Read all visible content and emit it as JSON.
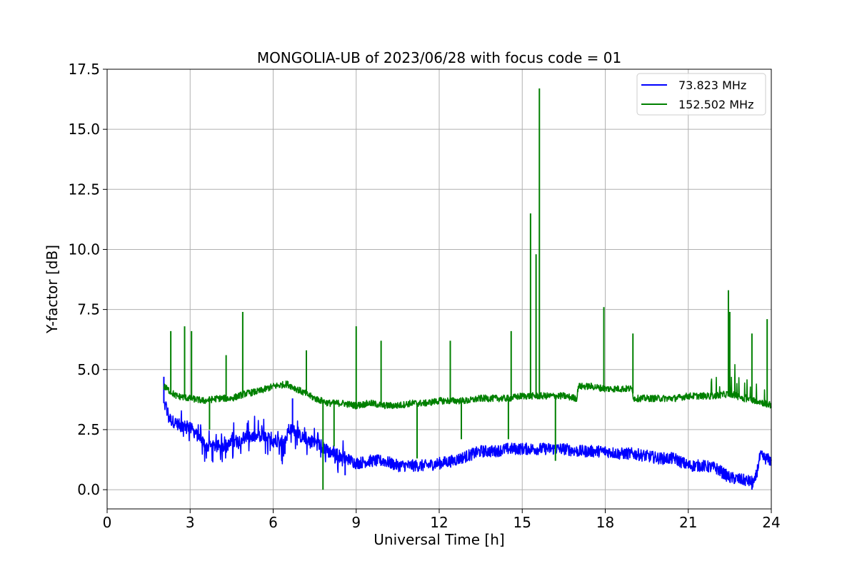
{
  "chart_data": {
    "type": "line",
    "title": "MONGOLIA-UB of 2023/06/28 with focus code = 01",
    "xlabel": "Universal Time [h]",
    "ylabel": "Y-factor [dB]",
    "xlim": [
      0,
      24
    ],
    "ylim": [
      -0.8,
      17.5
    ],
    "xticks": [
      0,
      3,
      6,
      9,
      12,
      15,
      18,
      21,
      24
    ],
    "xtick_labels": [
      "0",
      "3",
      "6",
      "9",
      "12",
      "15",
      "18",
      "21",
      "24"
    ],
    "yticks": [
      0,
      2.5,
      5,
      7.5,
      10,
      12.5,
      15,
      17.5
    ],
    "ytick_labels": [
      "0.0",
      "2.5",
      "5.0",
      "7.5",
      "10.0",
      "12.5",
      "15.0",
      "17.5"
    ],
    "grid": true,
    "legend_position": "top-right",
    "series": [
      {
        "name": "73.823 MHz",
        "color": "#0000ff",
        "x": [
          2.05,
          2.3,
          2.6,
          3.0,
          3.3,
          3.6,
          4.0,
          4.5,
          5.0,
          5.5,
          6.0,
          6.4,
          6.6,
          7.0,
          7.5,
          8.0,
          8.5,
          9.0,
          9.5,
          10.0,
          10.5,
          11.0,
          11.5,
          12.0,
          12.5,
          13.0,
          13.5,
          14.0,
          14.5,
          15.0,
          15.5,
          16.0,
          16.5,
          17.0,
          17.5,
          18.0,
          18.5,
          19.0,
          19.5,
          20.0,
          20.5,
          21.0,
          21.5,
          22.0,
          22.5,
          23.0,
          23.4,
          23.6,
          24.0
        ],
        "y": [
          3.6,
          2.9,
          2.7,
          2.6,
          2.2,
          1.8,
          1.8,
          1.9,
          2.2,
          2.2,
          2.1,
          1.9,
          2.6,
          2.2,
          2.0,
          1.6,
          1.4,
          1.1,
          1.2,
          1.2,
          1.0,
          1.0,
          1.0,
          1.1,
          1.2,
          1.4,
          1.6,
          1.6,
          1.7,
          1.7,
          1.7,
          1.7,
          1.7,
          1.6,
          1.6,
          1.6,
          1.5,
          1.5,
          1.4,
          1.3,
          1.3,
          1.0,
          1.0,
          0.9,
          0.5,
          0.4,
          0.3,
          1.4,
          1.2
        ]
      },
      {
        "name": "152.502 MHz",
        "color": "#008000",
        "x": [
          2.05,
          2.5,
          3.0,
          3.5,
          4.0,
          4.5,
          5.0,
          5.5,
          6.0,
          6.5,
          7.0,
          7.5,
          8.0,
          8.5,
          9.0,
          9.5,
          10.0,
          10.5,
          11.0,
          11.5,
          12.0,
          12.5,
          13.0,
          13.5,
          14.0,
          14.5,
          15.0,
          15.5,
          16.0,
          16.5,
          16.98,
          17.02,
          17.5,
          18.0,
          18.5,
          18.98,
          19.02,
          19.5,
          20.0,
          20.5,
          21.0,
          21.5,
          22.0,
          22.5,
          23.0,
          23.5,
          24.0
        ],
        "y": [
          4.3,
          3.9,
          3.8,
          3.7,
          3.8,
          3.8,
          4.0,
          4.1,
          4.3,
          4.4,
          4.1,
          3.8,
          3.6,
          3.6,
          3.5,
          3.6,
          3.5,
          3.5,
          3.6,
          3.6,
          3.7,
          3.7,
          3.7,
          3.8,
          3.8,
          3.8,
          3.9,
          3.9,
          3.9,
          3.9,
          3.8,
          4.3,
          4.3,
          4.2,
          4.2,
          4.2,
          3.8,
          3.8,
          3.8,
          3.8,
          3.9,
          3.9,
          3.9,
          4.0,
          3.8,
          3.7,
          3.5
        ]
      }
    ],
    "spikes": [
      {
        "series": 1,
        "x": 2.3,
        "y": 6.6
      },
      {
        "series": 1,
        "x": 2.8,
        "y": 6.8
      },
      {
        "series": 1,
        "x": 3.05,
        "y": 6.6
      },
      {
        "series": 1,
        "x": 4.3,
        "y": 5.6
      },
      {
        "series": 1,
        "x": 4.9,
        "y": 7.4
      },
      {
        "series": 1,
        "x": 7.2,
        "y": 5.8
      },
      {
        "series": 1,
        "x": 9.0,
        "y": 6.8
      },
      {
        "series": 1,
        "x": 9.9,
        "y": 6.2
      },
      {
        "series": 1,
        "x": 12.4,
        "y": 6.2
      },
      {
        "series": 1,
        "x": 14.6,
        "y": 6.6
      },
      {
        "series": 1,
        "x": 15.3,
        "y": 11.5
      },
      {
        "series": 1,
        "x": 15.5,
        "y": 9.8
      },
      {
        "series": 1,
        "x": 15.62,
        "y": 16.7
      },
      {
        "series": 1,
        "x": 17.95,
        "y": 7.6
      },
      {
        "series": 1,
        "x": 19.0,
        "y": 6.5
      },
      {
        "series": 1,
        "x": 22.45,
        "y": 8.3
      },
      {
        "series": 1,
        "x": 22.5,
        "y": 7.4
      },
      {
        "series": 1,
        "x": 23.3,
        "y": 6.5
      },
      {
        "series": 1,
        "x": 23.85,
        "y": 7.1
      },
      {
        "series": 1,
        "x": 3.7,
        "y": 2.5
      },
      {
        "series": 1,
        "x": 7.8,
        "y": 0.0
      },
      {
        "series": 1,
        "x": 8.2,
        "y": 1.8
      },
      {
        "series": 1,
        "x": 11.2,
        "y": 1.3
      },
      {
        "series": 1,
        "x": 12.8,
        "y": 2.1
      },
      {
        "series": 1,
        "x": 14.5,
        "y": 2.1
      },
      {
        "series": 1,
        "x": 16.2,
        "y": 1.2
      },
      {
        "series": 0,
        "x": 2.05,
        "y": 4.7
      },
      {
        "series": 0,
        "x": 6.7,
        "y": 3.8
      },
      {
        "series": 0,
        "x": 8.6,
        "y": 0.6
      },
      {
        "series": 0,
        "x": 23.3,
        "y": 0.0
      }
    ]
  }
}
